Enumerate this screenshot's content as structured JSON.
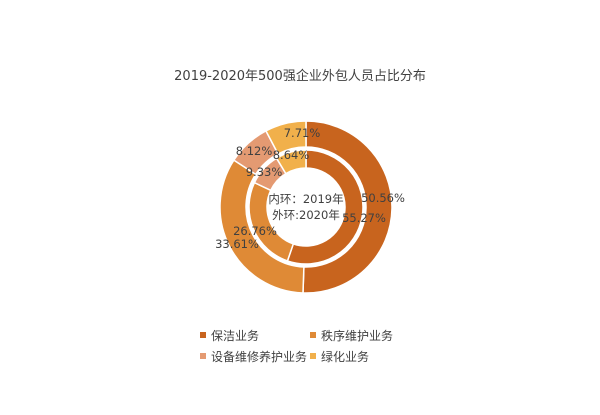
{
  "chart_data": {
    "type": "pie",
    "title": "2019-2020年500强企业外包人员占比分布",
    "center_label": {
      "line1": "内环：2019年",
      "line2": "外环:2020年"
    },
    "categories": [
      "保洁业务",
      "秩序维护业务",
      "设备维修养护业务",
      "绿化业务"
    ],
    "colors": [
      "#C8641E",
      "#DF8A36",
      "#E49A72",
      "#F1B04B"
    ],
    "series": [
      {
        "name": "2019年",
        "ring": "inner",
        "values": [
          55.27,
          26.76,
          9.33,
          8.64
        ],
        "labels": [
          "55.27%",
          "26.76%",
          "9.33%",
          "8.64%"
        ]
      },
      {
        "name": "2020年",
        "ring": "outer",
        "values": [
          50.56,
          33.61,
          8.12,
          7.71
        ],
        "labels": [
          "50.56%",
          "33.61%",
          "8.12%",
          "7.71%"
        ]
      }
    ],
    "legend": {
      "position": "bottom"
    }
  }
}
